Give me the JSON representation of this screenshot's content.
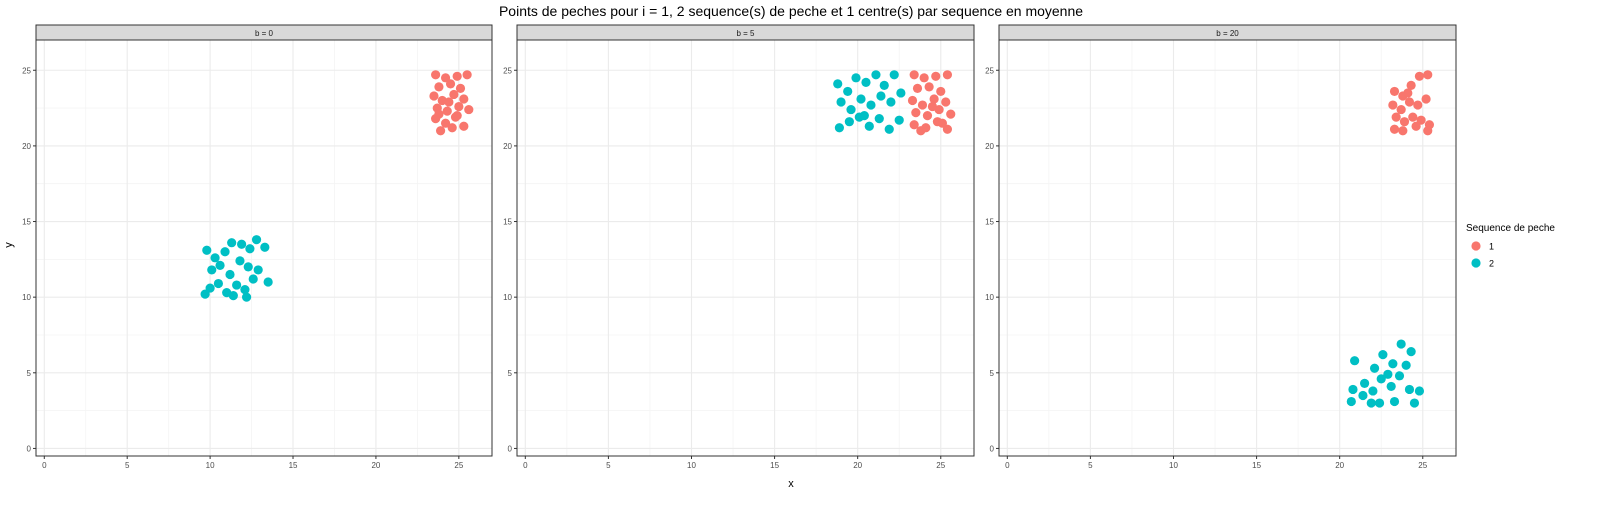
{
  "colors": {
    "series_1": "#F8766D",
    "series_2": "#00BFC4",
    "grid_major": "#EBEBEB",
    "grid_minor": "#F4F4F4",
    "strip_fill": "#D9D9D9",
    "panel_border": "#333333"
  },
  "chart_data": {
    "type": "scatter",
    "title": "Points de peches pour i = 1, 2 sequence(s) de peche et 1 centre(s) par sequence en moyenne",
    "xlabel": "x",
    "ylabel": "y",
    "xlim": [
      -0.5,
      27
    ],
    "ylim": [
      -0.5,
      27
    ],
    "x_ticks": [
      "0",
      "5",
      "10",
      "15",
      "20",
      "25"
    ],
    "y_ticks": [
      "0",
      "5",
      "10",
      "15",
      "20",
      "25"
    ],
    "grid": true,
    "legend": {
      "title": "Sequence de peche",
      "position": "right",
      "entries": [
        "1",
        "2"
      ]
    },
    "facets": [
      {
        "label": "b = 0",
        "series": [
          {
            "name": "1",
            "points": [
              [
                23.6,
                24.7
              ],
              [
                24.2,
                24.5
              ],
              [
                24.9,
                24.6
              ],
              [
                25.5,
                24.7
              ],
              [
                23.8,
                23.9
              ],
              [
                24.5,
                24.1
              ],
              [
                25.1,
                23.8
              ],
              [
                23.5,
                23.3
              ],
              [
                24.0,
                23.0
              ],
              [
                24.7,
                23.4
              ],
              [
                25.3,
                23.1
              ],
              [
                23.7,
                22.5
              ],
              [
                24.3,
                22.3
              ],
              [
                25.0,
                22.6
              ],
              [
                25.6,
                22.4
              ],
              [
                23.6,
                21.8
              ],
              [
                24.2,
                21.5
              ],
              [
                24.8,
                21.9
              ],
              [
                23.9,
                21.0
              ],
              [
                24.6,
                21.2
              ],
              [
                25.3,
                21.3
              ],
              [
                24.4,
                22.9
              ],
              [
                24.9,
                22.0
              ],
              [
                23.8,
                22.1
              ]
            ]
          },
          {
            "name": "2",
            "points": [
              [
                9.8,
                13.1
              ],
              [
                10.3,
                12.6
              ],
              [
                10.9,
                13.0
              ],
              [
                11.3,
                13.6
              ],
              [
                11.9,
                13.5
              ],
              [
                12.4,
                13.2
              ],
              [
                12.8,
                13.8
              ],
              [
                13.3,
                13.3
              ],
              [
                10.1,
                11.8
              ],
              [
                10.6,
                12.1
              ],
              [
                11.2,
                11.5
              ],
              [
                11.8,
                12.4
              ],
              [
                12.3,
                12.0
              ],
              [
                12.9,
                11.8
              ],
              [
                13.5,
                11.0
              ],
              [
                10.0,
                10.6
              ],
              [
                10.5,
                10.9
              ],
              [
                11.0,
                10.3
              ],
              [
                11.6,
                10.8
              ],
              [
                12.1,
                10.5
              ],
              [
                12.6,
                11.2
              ],
              [
                9.7,
                10.2
              ],
              [
                11.4,
                10.1
              ],
              [
                12.2,
                10.0
              ]
            ]
          }
        ]
      },
      {
        "label": "b = 5",
        "series": [
          {
            "name": "1",
            "points": [
              [
                23.4,
                24.7
              ],
              [
                24.0,
                24.5
              ],
              [
                24.7,
                24.6
              ],
              [
                25.4,
                24.7
              ],
              [
                23.6,
                23.8
              ],
              [
                24.3,
                23.9
              ],
              [
                25.0,
                23.6
              ],
              [
                23.3,
                23.0
              ],
              [
                23.9,
                22.7
              ],
              [
                24.6,
                23.1
              ],
              [
                25.3,
                22.9
              ],
              [
                23.5,
                22.2
              ],
              [
                24.2,
                22.0
              ],
              [
                24.9,
                22.4
              ],
              [
                25.6,
                22.1
              ],
              [
                23.4,
                21.4
              ],
              [
                24.1,
                21.2
              ],
              [
                24.8,
                21.6
              ],
              [
                25.4,
                21.1
              ],
              [
                23.8,
                21.0
              ],
              [
                24.5,
                22.6
              ],
              [
                25.1,
                21.5
              ]
            ]
          },
          {
            "name": "2",
            "points": [
              [
                18.8,
                24.1
              ],
              [
                19.4,
                23.6
              ],
              [
                19.9,
                24.5
              ],
              [
                20.5,
                24.2
              ],
              [
                21.1,
                24.7
              ],
              [
                21.6,
                24.0
              ],
              [
                22.2,
                24.7
              ],
              [
                19.0,
                22.9
              ],
              [
                19.6,
                22.4
              ],
              [
                20.2,
                23.1
              ],
              [
                20.8,
                22.7
              ],
              [
                21.4,
                23.3
              ],
              [
                22.0,
                22.9
              ],
              [
                22.6,
                23.5
              ],
              [
                18.9,
                21.2
              ],
              [
                19.5,
                21.6
              ],
              [
                20.1,
                21.9
              ],
              [
                20.7,
                21.3
              ],
              [
                21.3,
                21.8
              ],
              [
                21.9,
                21.1
              ],
              [
                22.5,
                21.7
              ],
              [
                20.4,
                22.0
              ]
            ]
          }
        ]
      },
      {
        "label": "b = 20",
        "series": [
          {
            "name": "1",
            "points": [
              [
                23.3,
                23.6
              ],
              [
                23.8,
                23.3
              ],
              [
                24.3,
                24.0
              ],
              [
                24.8,
                24.6
              ],
              [
                25.3,
                24.7
              ],
              [
                23.2,
                22.7
              ],
              [
                23.7,
                22.4
              ],
              [
                24.2,
                22.9
              ],
              [
                24.7,
                22.7
              ],
              [
                25.2,
                23.1
              ],
              [
                23.4,
                21.9
              ],
              [
                23.9,
                21.6
              ],
              [
                24.4,
                21.9
              ],
              [
                24.9,
                21.7
              ],
              [
                25.4,
                21.4
              ],
              [
                23.3,
                21.1
              ],
              [
                23.8,
                21.0
              ],
              [
                24.6,
                21.3
              ],
              [
                25.3,
                21.0
              ],
              [
                24.1,
                23.5
              ]
            ]
          },
          {
            "name": "2",
            "points": [
              [
                20.9,
                5.8
              ],
              [
                21.5,
                4.3
              ],
              [
                22.1,
                5.3
              ],
              [
                22.6,
                6.2
              ],
              [
                23.2,
                5.6
              ],
              [
                23.7,
                6.9
              ],
              [
                24.3,
                6.4
              ],
              [
                20.8,
                3.9
              ],
              [
                21.4,
                3.5
              ],
              [
                22.0,
                3.8
              ],
              [
                22.5,
                4.6
              ],
              [
                23.1,
                4.1
              ],
              [
                23.6,
                4.8
              ],
              [
                24.2,
                3.9
              ],
              [
                24.8,
                3.8
              ],
              [
                20.7,
                3.1
              ],
              [
                21.9,
                3.0
              ],
              [
                22.4,
                3.0
              ],
              [
                23.3,
                3.1
              ],
              [
                24.5,
                3.0
              ],
              [
                24.0,
                5.5
              ],
              [
                22.9,
                4.9
              ]
            ]
          }
        ]
      }
    ]
  }
}
